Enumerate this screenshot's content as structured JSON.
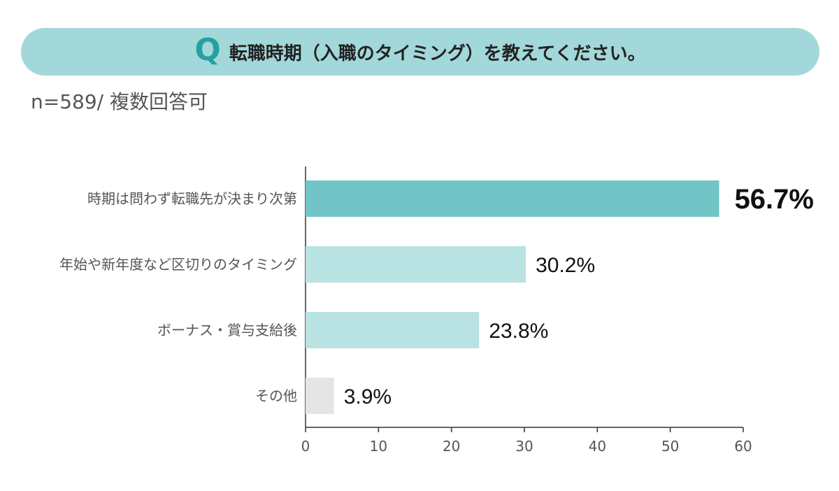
{
  "header": {
    "q_mark": "Q",
    "title": "転職時期（入職のタイミング）を教えてください。"
  },
  "subtitle": "n=589/ 複数回答可",
  "colors": {
    "header_bg": "#a3d8da",
    "q_mark": "#26a1a0",
    "bar_highlight": "#72c5c7",
    "bar_normal": "#b9e2e2",
    "bar_other": "#e5e5e5"
  },
  "chart_data": {
    "type": "bar",
    "orientation": "horizontal",
    "categories": [
      "時期は問わず転職先が決まり次第",
      "年始や新年度など区切りのタイミング",
      "ボーナス・賞与支給後",
      "その他"
    ],
    "values": [
      56.7,
      30.2,
      23.8,
      3.9
    ],
    "value_labels": [
      "56.7%",
      "30.2%",
      "23.8%",
      "3.9%"
    ],
    "bar_colors": [
      "#72c5c7",
      "#b9e2e2",
      "#b9e2e2",
      "#e5e5e5"
    ],
    "xlim": [
      0,
      60
    ],
    "xticks": [
      0,
      10,
      20,
      30,
      40,
      50,
      60
    ],
    "grid": false
  }
}
